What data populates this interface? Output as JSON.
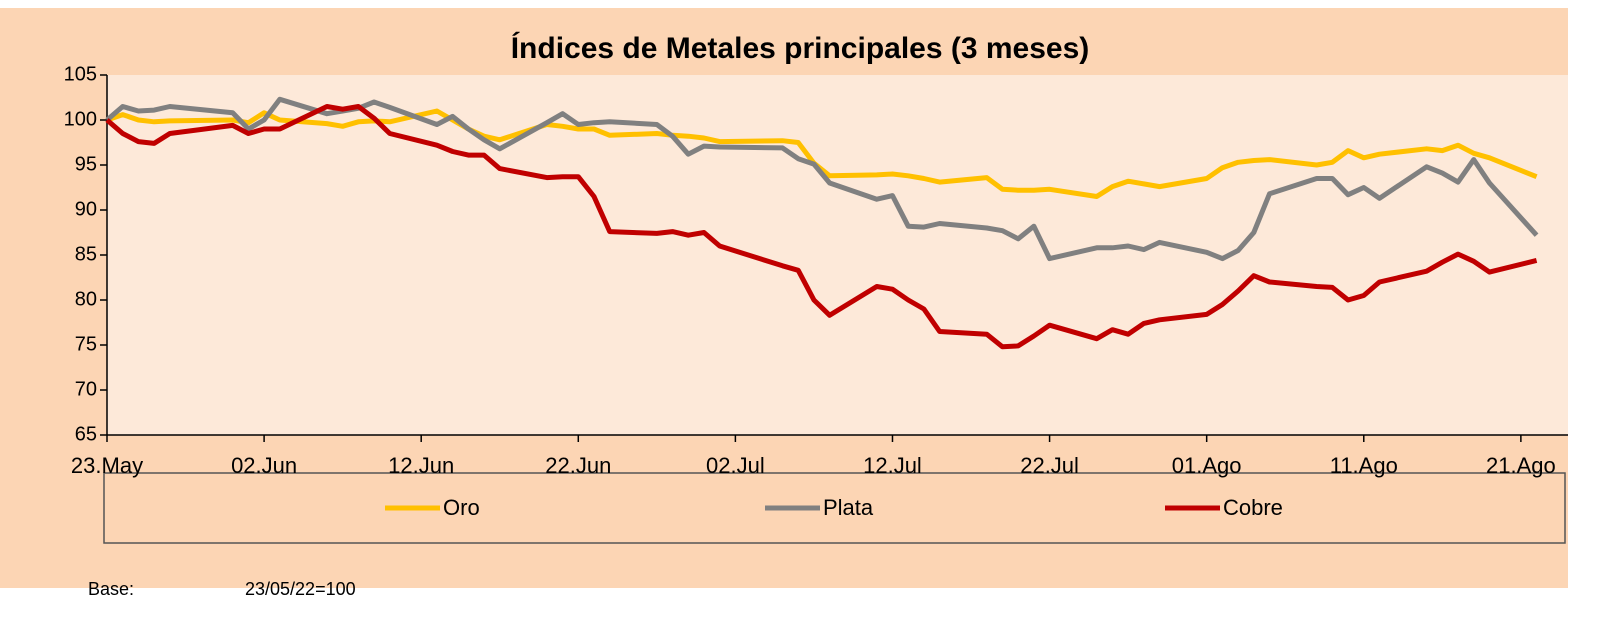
{
  "chart_data": {
    "type": "line",
    "title": "Índices de Metales principales (3 meses)",
    "x": [
      "05-23",
      "05-24",
      "05-25",
      "05-26",
      "05-27",
      "05-31",
      "06-01",
      "06-02",
      "06-03",
      "06-06",
      "06-07",
      "06-08",
      "06-09",
      "06-10",
      "06-13",
      "06-14",
      "06-15",
      "06-16",
      "06-17",
      "06-20",
      "06-21",
      "06-22",
      "06-23",
      "06-24",
      "06-27",
      "06-28",
      "06-29",
      "06-30",
      "07-01",
      "07-05",
      "07-06",
      "07-07",
      "07-08",
      "07-11",
      "07-12",
      "07-13",
      "07-14",
      "07-15",
      "07-18",
      "07-19",
      "07-20",
      "07-21",
      "07-22",
      "07-25",
      "07-26",
      "07-27",
      "07-28",
      "07-29",
      "08-01",
      "08-02",
      "08-03",
      "08-04",
      "08-05",
      "08-08",
      "08-09",
      "08-10",
      "08-11",
      "08-12",
      "08-15",
      "08-16",
      "08-17",
      "08-18",
      "08-19",
      "08-22"
    ],
    "series": [
      {
        "name": "Oro",
        "color": "#ffc000",
        "values": [
          100,
          100.6,
          100,
          99.8,
          99.9,
          100,
          99.7,
          100.8,
          100,
          99.6,
          99.3,
          99.8,
          99.9,
          99.8,
          101,
          100,
          99,
          98.2,
          97.8,
          99.5,
          99.3,
          99,
          99,
          98.3,
          98.5,
          98.3,
          98.2,
          98,
          97.6,
          97.7,
          97.5,
          95.2,
          93.8,
          93.9,
          94,
          93.8,
          93.5,
          93.1,
          93.6,
          92.3,
          92.2,
          92.2,
          92.3,
          91.5,
          92.6,
          93.2,
          92.9,
          92.6,
          93.5,
          94.7,
          95.3,
          95.5,
          95.6,
          95,
          95.3,
          96.6,
          95.8,
          96.2,
          96.8,
          96.6,
          97.2,
          96.3,
          95.8,
          93.7
        ]
      },
      {
        "name": "Plata",
        "color": "#808080",
        "values": [
          100,
          101.5,
          101,
          101.1,
          101.5,
          100.8,
          99,
          100,
          102.3,
          100.7,
          101,
          101.3,
          102,
          101.4,
          99.5,
          100.4,
          99,
          97.8,
          96.8,
          99.7,
          100.7,
          99.5,
          99.7,
          99.8,
          99.5,
          98.2,
          96.2,
          97.1,
          97,
          96.9,
          95.7,
          95.1,
          93,
          91.2,
          91.6,
          88.2,
          88.1,
          88.5,
          88,
          87.7,
          86.8,
          88.2,
          84.6,
          85.8,
          85.8,
          86,
          85.6,
          86.4,
          85.3,
          84.6,
          85.5,
          87.5,
          91.8,
          93.5,
          93.5,
          91.7,
          92.5,
          91.3,
          94.8,
          94.1,
          93.1,
          95.6,
          93,
          87.2
        ]
      },
      {
        "name": "Cobre",
        "color": "#c00000",
        "values": [
          100,
          98.5,
          97.6,
          97.4,
          98.5,
          99.4,
          98.5,
          99,
          99,
          101.5,
          101.2,
          101.5,
          100.2,
          98.5,
          97.2,
          96.5,
          96.1,
          96.1,
          94.6,
          93.6,
          93.7,
          93.7,
          91.5,
          87.6,
          87.4,
          87.6,
          87.2,
          87.5,
          86,
          83.8,
          83.3,
          80,
          78.3,
          81.5,
          81.2,
          80,
          79,
          76.5,
          76.2,
          74.8,
          74.9,
          76,
          77.2,
          75.7,
          76.7,
          76.2,
          77.4,
          77.8,
          78.4,
          79.5,
          81,
          82.7,
          82,
          81.5,
          81.4,
          80,
          80.5,
          82,
          83.2,
          84.2,
          85.1,
          84.3,
          83.1,
          84.4
        ]
      }
    ],
    "xlim": [
      "05-23",
      "08-24"
    ],
    "xticks": [
      {
        "value": "05-23",
        "label": "23.May"
      },
      {
        "value": "06-02",
        "label": "02.Jun"
      },
      {
        "value": "06-12",
        "label": "12.Jun"
      },
      {
        "value": "06-22",
        "label": "22.Jun"
      },
      {
        "value": "07-02",
        "label": "02.Jul"
      },
      {
        "value": "07-12",
        "label": "12.Jul"
      },
      {
        "value": "07-22",
        "label": "22.Jul"
      },
      {
        "value": "08-01",
        "label": "01.Ago"
      },
      {
        "value": "08-11",
        "label": "11.Ago"
      },
      {
        "value": "08-21",
        "label": "21.Ago"
      }
    ],
    "ylim": [
      65,
      105
    ],
    "yticks": [
      65,
      70,
      75,
      80,
      85,
      90,
      95,
      100,
      105
    ],
    "grid": false,
    "legend": "bottom",
    "note": {
      "label": "Base:",
      "value": "23/05/22=100"
    }
  }
}
